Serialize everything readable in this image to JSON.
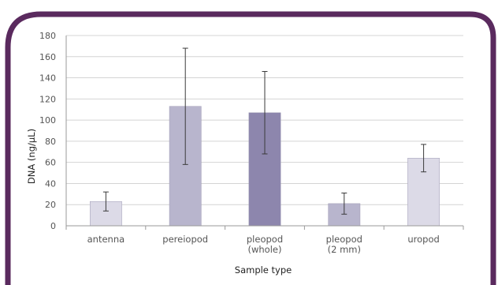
{
  "colors": {
    "frame": "#5a2a5e",
    "background": "#ffffff",
    "grid": "#d4d4d4",
    "axis": "#9a9a9a",
    "error_bar": "#3a3a3a"
  },
  "chart_data": {
    "type": "bar",
    "title": "",
    "xlabel": "Sample type",
    "ylabel": "DNA (ng/µL)",
    "ylim": [
      0,
      180
    ],
    "yticks": [
      0,
      20,
      40,
      60,
      80,
      100,
      120,
      140,
      160,
      180
    ],
    "grid": true,
    "legend": "none",
    "categories": [
      [
        "antenna"
      ],
      [
        "pereiopod"
      ],
      [
        "pleopod",
        "(whole)"
      ],
      [
        "pleopod",
        "(2 mm)"
      ],
      [
        "uropod"
      ]
    ],
    "values": [
      23,
      113,
      107,
      21,
      64
    ],
    "error": [
      9,
      55,
      39,
      10,
      13
    ],
    "bar_colors": [
      "#dcdae7",
      "#b8b5cd",
      "#8d86ad",
      "#b8b5cd",
      "#dcdae7"
    ]
  }
}
